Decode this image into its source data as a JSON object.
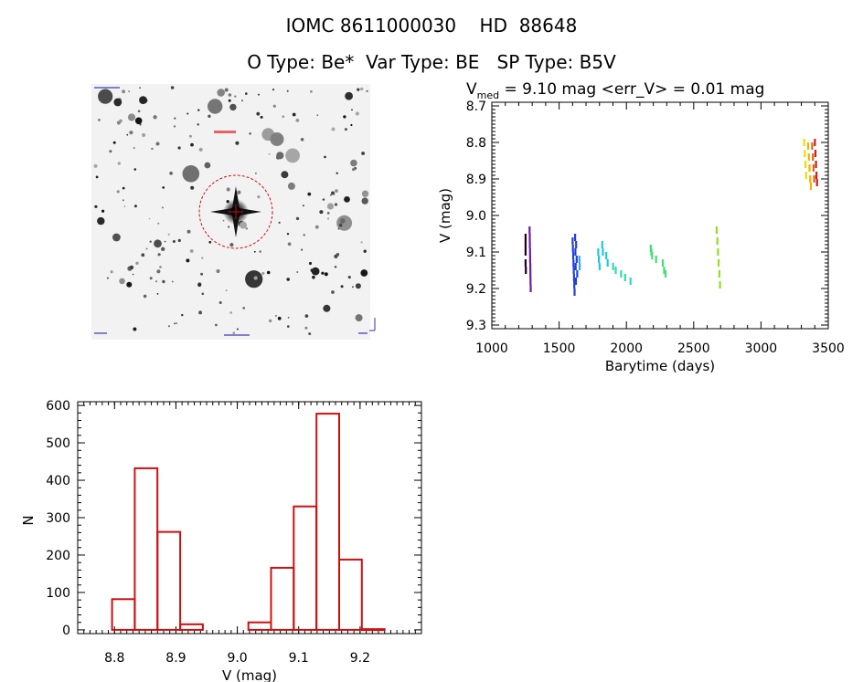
{
  "title_line1": "IOMC 8611000030    HD  88648",
  "title_line2": "O Type: Be*  Var Type: BE   SP Type: B5V",
  "image_panel": {
    "description_icon": "star-field-image"
  },
  "chart_data": [
    {
      "type": "scatter",
      "title_prefix": "V",
      "title_subscript": "med",
      "title_rest": " = 9.10 mag <err_V> = 0.01 mag",
      "xlabel": "Barytime (days)",
      "ylabel": "V (mag)",
      "xlim": [
        1000,
        3500
      ],
      "ylim": [
        9.31,
        8.69
      ],
      "y_inverted": true,
      "xticks": [
        "1000",
        "1500",
        "2000",
        "2500",
        "3000",
        "3500"
      ],
      "yticks": [
        "8.7",
        "8.8",
        "8.9",
        "9.0",
        "9.1",
        "9.2",
        "9.3"
      ],
      "series": [
        {
          "color": "#200020",
          "points": [
            [
              1250,
              9.06
            ],
            [
              1250,
              9.08
            ],
            [
              1250,
              9.1
            ],
            [
              1250,
              9.13
            ],
            [
              1252,
              9.15
            ]
          ]
        },
        {
          "color": "#6a1fa0",
          "points": [
            [
              1280,
              9.04
            ],
            [
              1281,
              9.06
            ],
            [
              1282,
              9.08
            ],
            [
              1283,
              9.1
            ],
            [
              1284,
              9.12
            ],
            [
              1285,
              9.14
            ],
            [
              1286,
              9.16
            ],
            [
              1287,
              9.18
            ],
            [
              1288,
              9.2
            ]
          ]
        },
        {
          "color": "#2040d8",
          "points": [
            [
              1600,
              9.07
            ],
            [
              1602,
              9.09
            ],
            [
              1604,
              9.11
            ],
            [
              1606,
              9.13
            ],
            [
              1608,
              9.15
            ],
            [
              1610,
              9.17
            ],
            [
              1612,
              9.19
            ],
            [
              1614,
              9.21
            ],
            [
              1618,
              9.06
            ],
            [
              1620,
              9.1
            ],
            [
              1622,
              9.14
            ],
            [
              1624,
              9.18
            ],
            [
              1626,
              9.08
            ],
            [
              1630,
              9.12
            ],
            [
              1634,
              9.16
            ]
          ]
        },
        {
          "color": "#40a0f0",
          "points": [
            [
              1650,
              9.12
            ],
            [
              1652,
              9.14
            ]
          ]
        },
        {
          "color": "#20c8d8",
          "points": [
            [
              1790,
              9.1
            ],
            [
              1795,
              9.12
            ],
            [
              1800,
              9.14
            ],
            [
              1820,
              9.08
            ],
            [
              1825,
              9.1
            ],
            [
              1850,
              9.11
            ],
            [
              1860,
              9.13
            ]
          ]
        },
        {
          "color": "#30d8b0",
          "points": [
            [
              1900,
              9.14
            ],
            [
              1920,
              9.15
            ],
            [
              1960,
              9.16
            ],
            [
              1990,
              9.17
            ],
            [
              2030,
              9.18
            ]
          ]
        },
        {
          "color": "#40e070",
          "points": [
            [
              2180,
              9.09
            ],
            [
              2185,
              9.1
            ],
            [
              2190,
              9.11
            ],
            [
              2220,
              9.12
            ],
            [
              2270,
              9.13
            ],
            [
              2280,
              9.15
            ],
            [
              2290,
              9.16
            ]
          ]
        },
        {
          "color": "#90e020",
          "points": [
            [
              2670,
              9.04
            ],
            [
              2675,
              9.07
            ],
            [
              2680,
              9.1
            ],
            [
              2685,
              9.13
            ],
            [
              2690,
              9.16
            ],
            [
              2695,
              9.19
            ]
          ]
        },
        {
          "color": "#e8e000",
          "points": [
            [
              3320,
              8.8
            ],
            [
              3325,
              8.83
            ],
            [
              3330,
              8.86
            ],
            [
              3335,
              8.89
            ]
          ]
        },
        {
          "color": "#f8b000",
          "points": [
            [
              3350,
              8.81
            ],
            [
              3355,
              8.84
            ],
            [
              3360,
              8.87
            ],
            [
              3365,
              8.9
            ],
            [
              3370,
              8.92
            ]
          ]
        },
        {
          "color": "#e86010",
          "points": [
            [
              3380,
              8.81
            ],
            [
              3385,
              8.84
            ],
            [
              3390,
              8.87
            ],
            [
              3395,
              8.9
            ]
          ]
        },
        {
          "color": "#c82020",
          "points": [
            [
              3400,
              8.8
            ],
            [
              3404,
              8.83
            ],
            [
              3408,
              8.86
            ],
            [
              3412,
              8.89
            ],
            [
              3416,
              8.91
            ]
          ]
        }
      ]
    },
    {
      "type": "bar",
      "title": "",
      "xlabel": "V (mag)",
      "ylabel": "N",
      "xlim": [
        8.74,
        9.3
      ],
      "ylim": [
        -10,
        610
      ],
      "xticks": [
        "8.8",
        "8.9",
        "9.0",
        "9.1",
        "9.2"
      ],
      "yticks": [
        "0",
        "100",
        "200",
        "300",
        "400",
        "500",
        "600"
      ],
      "bin_width": 0.037,
      "bar_color": "#cc1111",
      "bins": [
        {
          "x": 8.796,
          "value": 82
        },
        {
          "x": 8.833,
          "value": 432
        },
        {
          "x": 8.87,
          "value": 262
        },
        {
          "x": 8.907,
          "value": 15
        },
        {
          "x": 8.944,
          "value": 0
        },
        {
          "x": 8.981,
          "value": 0
        },
        {
          "x": 9.018,
          "value": 20
        },
        {
          "x": 9.055,
          "value": 166
        },
        {
          "x": 9.092,
          "value": 330
        },
        {
          "x": 9.129,
          "value": 578
        },
        {
          "x": 9.166,
          "value": 188
        },
        {
          "x": 9.203,
          "value": 2
        }
      ]
    }
  ]
}
